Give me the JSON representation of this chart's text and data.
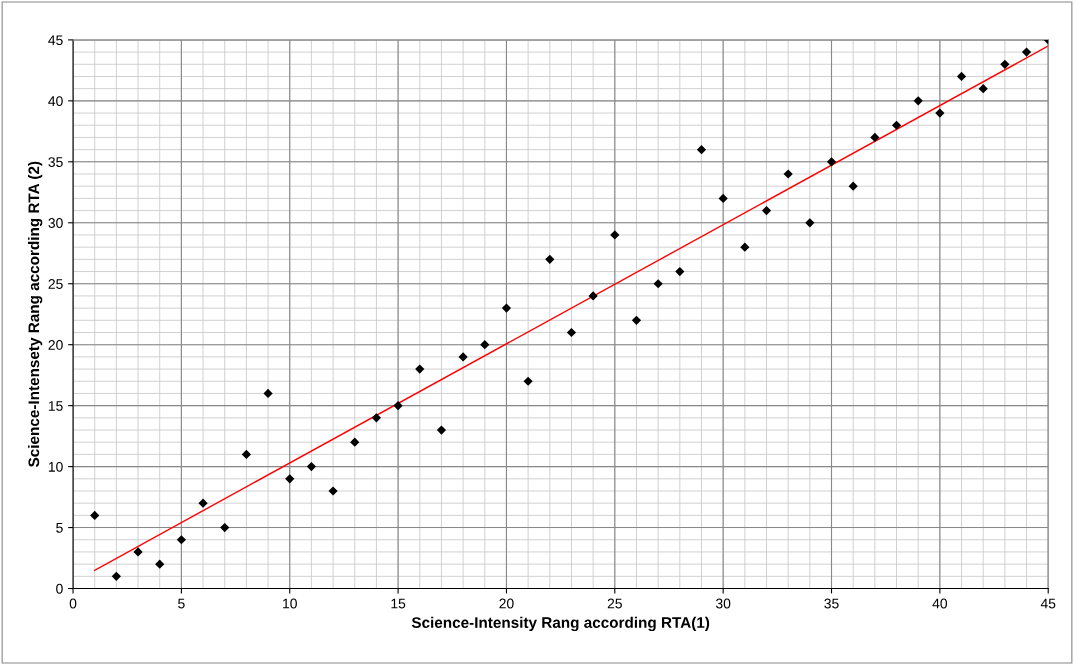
{
  "chart_data": {
    "type": "scatter",
    "xlabel": "Science-Intensity Rang according RTA(1)",
    "ylabel": "Science-Intensety Rang according RTA (2)",
    "series": [
      {
        "color": "#000000",
        "marker": "diamond",
        "x": [
          1,
          2,
          3,
          4,
          5,
          6,
          7,
          8,
          9,
          10,
          11,
          12,
          13,
          14,
          15,
          16,
          17,
          18,
          19,
          20,
          21,
          22,
          23,
          24,
          25,
          26,
          27,
          28,
          29,
          30,
          31,
          32,
          33,
          34,
          35,
          36,
          37,
          38,
          39,
          40,
          41,
          42,
          43,
          44,
          45
        ],
        "values": [
          6,
          1,
          3,
          2,
          4,
          7,
          5,
          11,
          16,
          9,
          10,
          8,
          12,
          14,
          15,
          18,
          13,
          19,
          20,
          23,
          17,
          27,
          21,
          24,
          29,
          22,
          25,
          26,
          36,
          32,
          28,
          31,
          34,
          30,
          35,
          33,
          37,
          38,
          40,
          39,
          42,
          41,
          43,
          44,
          45
        ]
      },
      {
        "type": "line",
        "color": "#ff0000",
        "x": [
          1,
          45
        ],
        "values": [
          1.5,
          44.5
        ]
      }
    ],
    "xlim": [
      0,
      45
    ],
    "xticks": [
      0,
      5,
      10,
      15,
      20,
      25,
      30,
      35,
      40,
      45
    ],
    "ylim": [
      0,
      45
    ],
    "yticks": [
      0,
      5,
      10,
      15,
      20,
      25,
      30,
      35,
      40,
      45
    ],
    "grid": true
  }
}
